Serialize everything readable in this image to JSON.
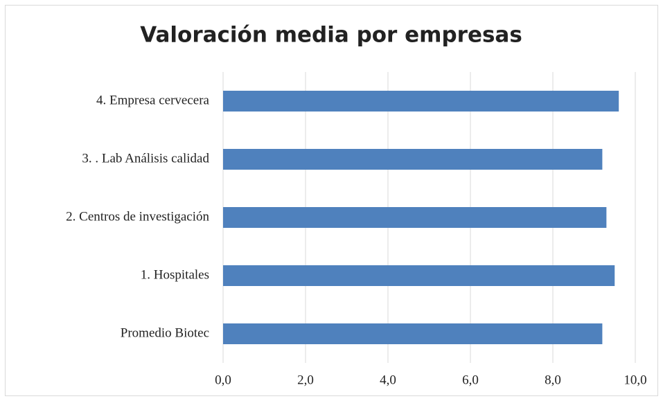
{
  "chart_data": {
    "type": "bar",
    "orientation": "horizontal",
    "title": "Valoración media por empresas",
    "categories": [
      "4.  Empresa cervecera",
      "3. . Lab Análisis calidad",
      "2. Centros de investigación",
      "1. Hospitales",
      "Promedio Biotec"
    ],
    "values": [
      9.6,
      9.2,
      9.3,
      9.5,
      9.2
    ],
    "color": "#4f81bd",
    "xlim": [
      0,
      10
    ],
    "xticks": [
      {
        "value": 0,
        "label": "0,0"
      },
      {
        "value": 2,
        "label": "2,0"
      },
      {
        "value": 4,
        "label": "4,0"
      },
      {
        "value": 6,
        "label": "6,0"
      },
      {
        "value": 8,
        "label": "8,0"
      },
      {
        "value": 10,
        "label": "10,0"
      }
    ],
    "grid": true
  }
}
